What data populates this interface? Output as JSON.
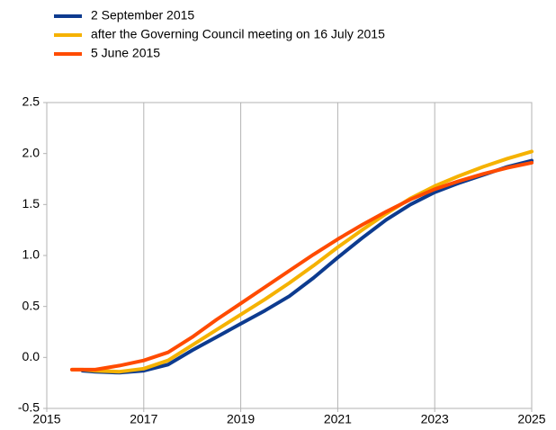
{
  "chart_data": {
    "type": "line",
    "x": [
      2015.52,
      2015.74,
      2016,
      2016.5,
      2017,
      2017.5,
      2018,
      2018.5,
      2019,
      2019.5,
      2020,
      2020.5,
      2021,
      2021.5,
      2022,
      2022.5,
      2023,
      2023.5,
      2024,
      2024.5,
      2025
    ],
    "series": [
      {
        "name": "2 September 2015",
        "color": "#0d3b8f",
        "values": [
          null,
          -0.13,
          -0.14,
          -0.15,
          -0.13,
          -0.07,
          0.07,
          0.2,
          0.33,
          0.46,
          0.6,
          0.78,
          0.98,
          1.17,
          1.35,
          1.5,
          1.62,
          1.71,
          1.79,
          1.87,
          1.93
        ]
      },
      {
        "name": "after the Governing Council meeting on 16 July 2015",
        "color": "#f5b200",
        "values": [
          -0.12,
          -0.12,
          -0.13,
          -0.14,
          -0.11,
          -0.03,
          0.12,
          0.27,
          0.42,
          0.57,
          0.73,
          0.9,
          1.08,
          1.25,
          1.41,
          1.56,
          1.68,
          1.78,
          1.87,
          1.95,
          2.02
        ]
      },
      {
        "name": "5 June 2015",
        "color": "#ff4b00",
        "values": [
          -0.12,
          -0.12,
          -0.12,
          -0.08,
          -0.03,
          0.05,
          0.2,
          0.37,
          0.53,
          0.69,
          0.85,
          1.01,
          1.16,
          1.3,
          1.43,
          1.55,
          1.65,
          1.73,
          1.8,
          1.86,
          1.91
        ]
      }
    ],
    "xlim": [
      2015,
      2025
    ],
    "xticks": [
      2015,
      2017,
      2019,
      2021,
      2023,
      2025
    ],
    "ylim": [
      -0.5,
      2.5
    ],
    "yticks": [
      -0.5,
      {
        "value": 0,
        "label": "0.0"
      },
      0.5,
      {
        "value": 1,
        "label": "1.0"
      },
      1.5,
      {
        "value": 2,
        "label": "2.0"
      },
      2.5
    ],
    "grid": "x",
    "legend": "top-left"
  }
}
